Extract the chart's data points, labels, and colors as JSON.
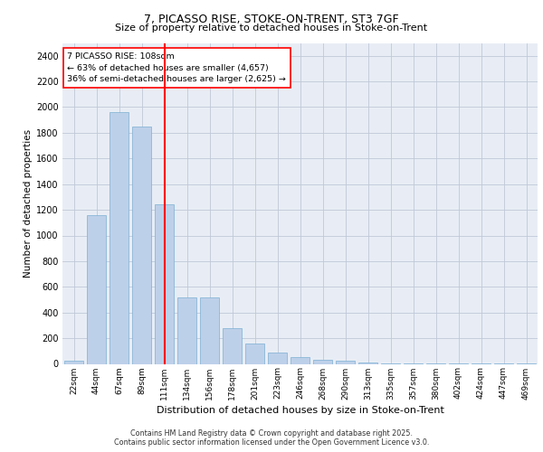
{
  "title1": "7, PICASSO RISE, STOKE-ON-TRENT, ST3 7GF",
  "title2": "Size of property relative to detached houses in Stoke-on-Trent",
  "xlabel": "Distribution of detached houses by size in Stoke-on-Trent",
  "ylabel": "Number of detached properties",
  "bar_labels": [
    "22sqm",
    "44sqm",
    "67sqm",
    "89sqm",
    "111sqm",
    "134sqm",
    "156sqm",
    "178sqm",
    "201sqm",
    "223sqm",
    "246sqm",
    "268sqm",
    "290sqm",
    "313sqm",
    "335sqm",
    "357sqm",
    "380sqm",
    "402sqm",
    "424sqm",
    "447sqm",
    "469sqm"
  ],
  "bar_values": [
    25,
    1160,
    1960,
    1850,
    1240,
    515,
    515,
    275,
    155,
    85,
    50,
    30,
    28,
    10,
    5,
    5,
    4,
    3,
    2,
    2,
    2
  ],
  "bar_color": "#bdd0e9",
  "bar_edgecolor": "#7bafd4",
  "vline_x": 4.0,
  "vline_color": "red",
  "annotation_text": "7 PICASSO RISE: 108sqm\n← 63% of detached houses are smaller (4,657)\n36% of semi-detached houses are larger (2,625) →",
  "annotation_box_color": "white",
  "annotation_box_edgecolor": "red",
  "ylim": [
    0,
    2500
  ],
  "yticks": [
    0,
    200,
    400,
    600,
    800,
    1000,
    1200,
    1400,
    1600,
    1800,
    2000,
    2200,
    2400
  ],
  "grid_color": "#c0c8d8",
  "bg_color": "#e8edf5",
  "footer": "Contains HM Land Registry data © Crown copyright and database right 2025.\nContains public sector information licensed under the Open Government Licence v3.0."
}
